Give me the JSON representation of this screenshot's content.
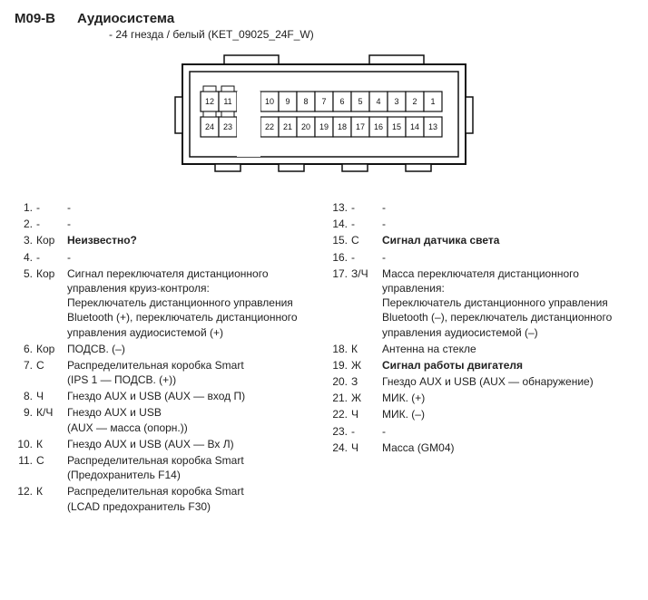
{
  "header": {
    "code": "M09-B",
    "title": "Аудиосистема",
    "subtitle": "- 24 гнезда / белый (KET_09025_24F_W)"
  },
  "connector": {
    "outline_color": "#111111",
    "fill": "#ffffff",
    "number_fontsize": 9,
    "rows": [
      {
        "side": "left",
        "y": 0,
        "cells": [
          "12",
          "11"
        ]
      },
      {
        "side": "right",
        "y": 0,
        "cells": [
          "10",
          "9",
          "8",
          "7",
          "6",
          "5",
          "4",
          "3",
          "2",
          "1"
        ]
      },
      {
        "side": "left",
        "y": 1,
        "cells": [
          "24",
          "23"
        ]
      },
      {
        "side": "right",
        "y": 1,
        "cells": [
          "22",
          "21",
          "20",
          "19",
          "18",
          "17",
          "16",
          "15",
          "14",
          "13"
        ]
      }
    ]
  },
  "pins_left": [
    {
      "num": "1.",
      "color": "-",
      "desc": [
        "-"
      ]
    },
    {
      "num": "2.",
      "color": "-",
      "desc": [
        "-"
      ]
    },
    {
      "num": "3.",
      "color": "Кор",
      "bold": true,
      "desc": [
        "Неизвестно?"
      ]
    },
    {
      "num": "4.",
      "color": "-",
      "desc": [
        "-"
      ]
    },
    {
      "num": "5.",
      "color": "Кор",
      "desc": [
        "Сигнал переключателя дистанционного",
        "управления круиз-контроля:",
        "Переключатель дистанционного управления",
        "Bluetooth (+), переключатель дистанционного",
        "управления аудиосистемой (+)"
      ]
    },
    {
      "num": "6.",
      "color": "Кор",
      "desc": [
        "ПОДСВ. (–)"
      ]
    },
    {
      "num": "7.",
      "color": "С",
      "desc": [
        "Распределительная коробка Smart",
        "(IPS 1 — ПОДСВ. (+))"
      ]
    },
    {
      "num": "8.",
      "color": "Ч",
      "desc": [
        "Гнездо AUX и USB (AUX — вход П)"
      ]
    },
    {
      "num": "9.",
      "color": "К/Ч",
      "desc": [
        "Гнездо AUX и USB",
        "(AUX — масса (опорн.))"
      ]
    },
    {
      "num": "10.",
      "color": "К",
      "desc": [
        "Гнездо AUX и USB (AUX — Вх Л)"
      ]
    },
    {
      "num": "11.",
      "color": "С",
      "desc": [
        "Распределительная коробка Smart",
        "(Предохранитель F14)"
      ]
    },
    {
      "num": "12.",
      "color": "К",
      "desc": [
        "Распределительная коробка Smart",
        "(LCAD предохранитель F30)"
      ]
    }
  ],
  "pins_right": [
    {
      "num": "13.",
      "color": "-",
      "desc": [
        "-"
      ]
    },
    {
      "num": "14.",
      "color": "-",
      "desc": [
        "-"
      ]
    },
    {
      "num": "15.",
      "color": "С",
      "bold": true,
      "desc": [
        "Сигнал датчика света"
      ]
    },
    {
      "num": "16.",
      "color": "-",
      "desc": [
        "-"
      ]
    },
    {
      "num": "17.",
      "color": "З/Ч",
      "desc": [
        "Масса переключателя дистанционного",
        "управления:",
        "Переключатель дистанционного управления",
        "Bluetooth (–), переключатель дистанционного",
        "управления аудиосистемой (–)"
      ]
    },
    {
      "num": "18.",
      "color": "К",
      "desc": [
        "Антенна на стекле"
      ]
    },
    {
      "num": "19.",
      "color": "Ж",
      "bold": true,
      "desc": [
        "Сигнал работы двигателя"
      ]
    },
    {
      "num": "20.",
      "color": "З",
      "desc": [
        "Гнездо AUX и USB (AUX — обнаружение)"
      ]
    },
    {
      "num": "21.",
      "color": "Ж",
      "desc": [
        "МИК. (+)"
      ]
    },
    {
      "num": "22.",
      "color": "Ч",
      "desc": [
        "МИК. (–)"
      ]
    },
    {
      "num": "23.",
      "color": "-",
      "desc": [
        "-"
      ]
    },
    {
      "num": "24.",
      "color": "Ч",
      "desc": [
        "Масса (GM04)"
      ]
    }
  ]
}
